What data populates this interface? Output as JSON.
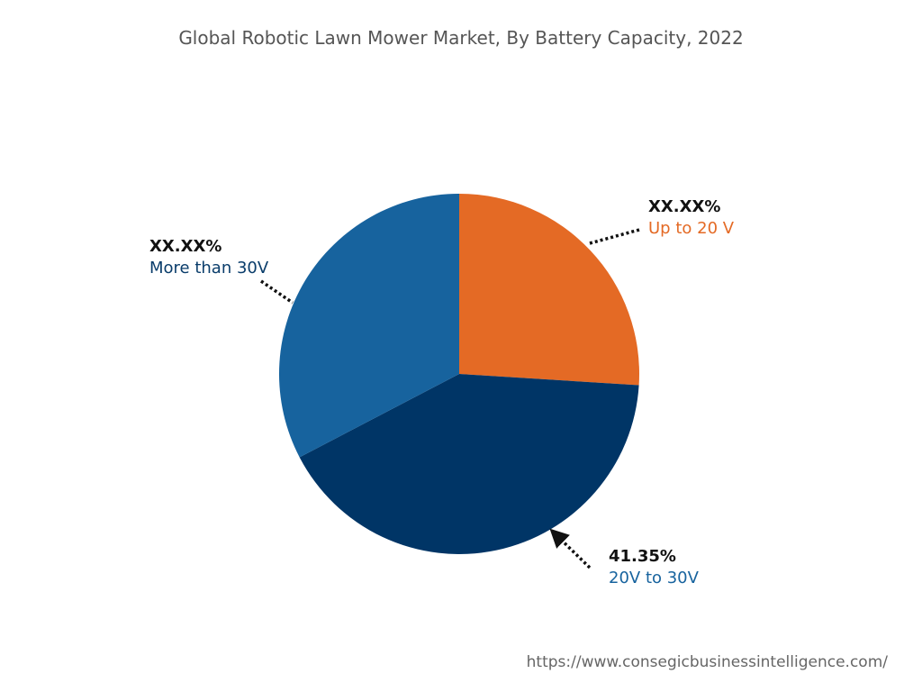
{
  "chart_data": {
    "type": "pie",
    "title": "Global Robotic Lawn Mower Market, By Battery Capacity, 2022",
    "slices": [
      {
        "name": "Up to 20 V",
        "label": "XX.XX%",
        "value": 26.0,
        "color": "#E46A25",
        "label_color": "#E46A25"
      },
      {
        "name": "20V to 30V",
        "label": "41.35%",
        "value": 41.35,
        "color": "#003566",
        "label_color": "#17639E"
      },
      {
        "name": "More than 30V",
        "label": "XX.XX%",
        "value": 32.65,
        "color": "#17639E",
        "label_color": "#0A3D6B"
      }
    ],
    "start_angle": "top, clockwise"
  },
  "source": "https://www.consegicbusinessintelligence.com/"
}
